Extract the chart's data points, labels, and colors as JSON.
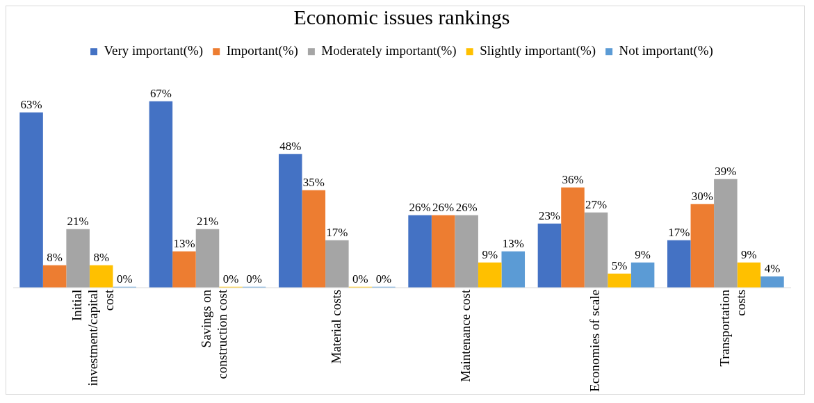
{
  "chart_data": {
    "type": "bar",
    "title": "Economic issues rankings",
    "categories": [
      "Initial investment/capital cost",
      "Savings on construction cost",
      "Material costs",
      "Maintenance cost",
      "Economies of scale",
      "Transportation costs"
    ],
    "series": [
      {
        "name": "Very important(%)",
        "color": "#4472c4",
        "values": [
          63,
          67,
          48,
          26,
          23,
          17
        ],
        "value_labels": [
          "63%",
          "67%",
          "48%",
          "26%",
          "23%",
          "17%"
        ]
      },
      {
        "name": "Important(%)",
        "color": "#ed7d31",
        "values": [
          8,
          13,
          35,
          26,
          36,
          30
        ],
        "value_labels": [
          "8%",
          "13%",
          "35%",
          "26%",
          "36%",
          "30%"
        ]
      },
      {
        "name": "Moderately important(%)",
        "color": "#a5a5a5",
        "values": [
          21,
          21,
          17,
          26,
          27,
          39
        ],
        "value_labels": [
          "21%",
          "21%",
          "17%",
          "26%",
          "27%",
          "39%"
        ]
      },
      {
        "name": "Slightly important(%)",
        "color": "#ffc000",
        "values": [
          8,
          0,
          0,
          9,
          5,
          9
        ],
        "value_labels": [
          "8%",
          "0%",
          "0%",
          "9%",
          "5%",
          "9%"
        ]
      },
      {
        "name": "Not important(%)",
        "color": "#5b9bd5",
        "values": [
          0,
          0,
          0,
          13,
          9,
          4
        ],
        "value_labels": [
          "0%",
          "0%",
          "0%",
          "13%",
          "9%",
          "4%"
        ]
      }
    ],
    "legend": "top",
    "grid": false
  }
}
